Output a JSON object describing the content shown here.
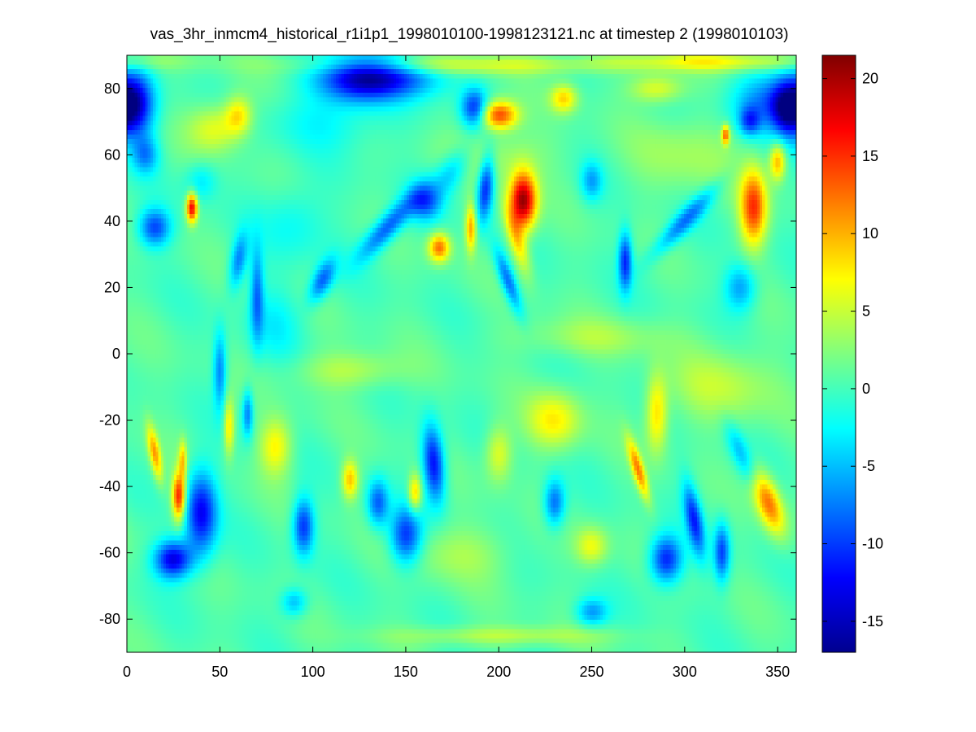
{
  "chart_data": {
    "type": "heatmap",
    "title": "vas_3hr_inmcm4_historical_r1i1p1_1998010100-1998123121.nc at timestep 2 (1998010103)",
    "xlabel": "",
    "ylabel": "",
    "xlim": [
      0,
      360
    ],
    "ylim": [
      -90,
      90
    ],
    "xticks": [
      0,
      50,
      100,
      150,
      200,
      250,
      300,
      350
    ],
    "yticks": [
      -80,
      -60,
      -40,
      -20,
      0,
      20,
      40,
      60,
      80
    ],
    "xtick_labels": [
      "0",
      "50",
      "100",
      "150",
      "200",
      "250",
      "300",
      "350"
    ],
    "ytick_labels": [
      "-80",
      "-60",
      "-40",
      "-20",
      "0",
      "20",
      "40",
      "60",
      "80"
    ],
    "colorbar": {
      "colormap": "jet",
      "clim": [
        -17,
        21.5
      ],
      "ticks": [
        -15,
        -10,
        -5,
        0,
        5,
        10,
        15,
        20
      ],
      "tick_labels": [
        "-15",
        "-10",
        "-5",
        "0",
        "5",
        "10",
        "15",
        "20"
      ]
    },
    "background_value": 0.5,
    "features": [
      {
        "x": 125,
        "y": 83,
        "value": -14,
        "sx": 16,
        "sy": 5,
        "rot": 0
      },
      {
        "x": 5,
        "y": 75,
        "value": -12,
        "sx": 7,
        "sy": 7,
        "rot": 0
      },
      {
        "x": 355,
        "y": 74,
        "value": -12,
        "sx": 6,
        "sy": 6,
        "rot": 0
      },
      {
        "x": 345,
        "y": 76,
        "value": -8,
        "sx": 14,
        "sy": 6,
        "rot": 0
      },
      {
        "x": 150,
        "y": 83,
        "value": -6,
        "sx": 18,
        "sy": 4,
        "rot": 0
      },
      {
        "x": 110,
        "y": 70,
        "value": -3,
        "sx": 22,
        "sy": 6,
        "rot": 0
      },
      {
        "x": 180,
        "y": 87,
        "value": 5,
        "sx": 60,
        "sy": 2,
        "rot": 0
      },
      {
        "x": 320,
        "y": 88,
        "value": 6,
        "sx": 40,
        "sy": 2,
        "rot": 0
      },
      {
        "x": 48,
        "y": 68,
        "value": 6,
        "sx": 10,
        "sy": 5,
        "rot": 0
      },
      {
        "x": 60,
        "y": 72,
        "value": 7,
        "sx": 5,
        "sy": 4,
        "rot": 0
      },
      {
        "x": 200,
        "y": 72,
        "value": 14,
        "sx": 7,
        "sy": 3,
        "rot": 0
      },
      {
        "x": 187,
        "y": 74,
        "value": -11,
        "sx": 5,
        "sy": 4,
        "rot": 0
      },
      {
        "x": 235,
        "y": 77,
        "value": 8,
        "sx": 5,
        "sy": 3,
        "rot": 0
      },
      {
        "x": 285,
        "y": 80,
        "value": 6,
        "sx": 10,
        "sy": 3,
        "rot": 0
      },
      {
        "x": 335,
        "y": 70,
        "value": -8,
        "sx": 4,
        "sy": 3,
        "rot": 0
      },
      {
        "x": 322,
        "y": 66,
        "value": 12,
        "sx": 1.5,
        "sy": 2,
        "rot": 0
      },
      {
        "x": 10,
        "y": 60,
        "value": -7,
        "sx": 5,
        "sy": 4,
        "rot": 0
      },
      {
        "x": 35,
        "y": 44,
        "value": 17,
        "sx": 2,
        "sy": 3,
        "rot": 0
      },
      {
        "x": 15,
        "y": 38,
        "value": -10,
        "sx": 6,
        "sy": 4,
        "rot": 0
      },
      {
        "x": 40,
        "y": 52,
        "value": -4,
        "sx": 6,
        "sy": 4,
        "rot": 0
      },
      {
        "x": 60,
        "y": 28,
        "value": -8,
        "sx": 3,
        "sy": 6,
        "rot": -20
      },
      {
        "x": 90,
        "y": 40,
        "value": -3,
        "sx": 12,
        "sy": 8,
        "rot": 0
      },
      {
        "x": 80,
        "y": 10,
        "value": -3,
        "sx": 10,
        "sy": 8,
        "rot": 0
      },
      {
        "x": 70,
        "y": 18,
        "value": -8,
        "sx": 2.5,
        "sy": 10,
        "rot": 0
      },
      {
        "x": 50,
        "y": -5,
        "value": -8,
        "sx": 2.5,
        "sy": 8,
        "rot": 0
      },
      {
        "x": 105,
        "y": 22,
        "value": -9,
        "sx": 3,
        "sy": 6,
        "rot": -50
      },
      {
        "x": 140,
        "y": 38,
        "value": -10,
        "sx": 12,
        "sy": 3,
        "rot": 30
      },
      {
        "x": 160,
        "y": 46,
        "value": -9,
        "sx": 6,
        "sy": 4,
        "rot": 0
      },
      {
        "x": 175,
        "y": 55,
        "value": -6,
        "sx": 8,
        "sy": 4,
        "rot": 30
      },
      {
        "x": 168,
        "y": 32,
        "value": 12,
        "sx": 4,
        "sy": 3,
        "rot": 0
      },
      {
        "x": 185,
        "y": 38,
        "value": 10,
        "sx": 2,
        "sy": 5,
        "rot": 0
      },
      {
        "x": 193,
        "y": 50,
        "value": -12,
        "sx": 3,
        "sy": 7,
        "rot": -10
      },
      {
        "x": 213,
        "y": 46,
        "value": 20,
        "sx": 5,
        "sy": 6,
        "rot": 0
      },
      {
        "x": 210,
        "y": 34,
        "value": 8,
        "sx": 3,
        "sy": 8,
        "rot": 30
      },
      {
        "x": 205,
        "y": 22,
        "value": -9,
        "sx": 2.5,
        "sy": 8,
        "rot": 35
      },
      {
        "x": 250,
        "y": 52,
        "value": -6,
        "sx": 4,
        "sy": 4,
        "rot": 0
      },
      {
        "x": 268,
        "y": 28,
        "value": -11,
        "sx": 2.5,
        "sy": 6,
        "rot": 0
      },
      {
        "x": 300,
        "y": 40,
        "value": -8,
        "sx": 14,
        "sy": 2.5,
        "rot": 30
      },
      {
        "x": 337,
        "y": 44,
        "value": 14,
        "sx": 5,
        "sy": 8,
        "rot": 0
      },
      {
        "x": 330,
        "y": 20,
        "value": -7,
        "sx": 6,
        "sy": 5,
        "rot": 0
      },
      {
        "x": 350,
        "y": 58,
        "value": 10,
        "sx": 3,
        "sy": 4,
        "rot": 0
      },
      {
        "x": 15,
        "y": -30,
        "value": 10,
        "sx": 2,
        "sy": 6,
        "rot": 20
      },
      {
        "x": 30,
        "y": -32,
        "value": 8,
        "sx": 1.5,
        "sy": 4,
        "rot": 0
      },
      {
        "x": 28,
        "y": -43,
        "value": 16,
        "sx": 2.5,
        "sy": 5,
        "rot": 0
      },
      {
        "x": 40,
        "y": -48,
        "value": -13,
        "sx": 6,
        "sy": 9,
        "rot": 0
      },
      {
        "x": 25,
        "y": -62,
        "value": -14,
        "sx": 7,
        "sy": 4,
        "rot": 0
      },
      {
        "x": 55,
        "y": -22,
        "value": 8,
        "sx": 2,
        "sy": 6,
        "rot": 0
      },
      {
        "x": 65,
        "y": -18,
        "value": -8,
        "sx": 2,
        "sy": 5,
        "rot": 0
      },
      {
        "x": 80,
        "y": -28,
        "value": 7,
        "sx": 6,
        "sy": 6,
        "rot": 0
      },
      {
        "x": 95,
        "y": -52,
        "value": -11,
        "sx": 4,
        "sy": 6,
        "rot": 0
      },
      {
        "x": 120,
        "y": -38,
        "value": 9,
        "sx": 3,
        "sy": 4,
        "rot": 0
      },
      {
        "x": 135,
        "y": -45,
        "value": -9,
        "sx": 4,
        "sy": 5,
        "rot": 0
      },
      {
        "x": 150,
        "y": -55,
        "value": -11,
        "sx": 6,
        "sy": 6,
        "rot": 0
      },
      {
        "x": 165,
        "y": -33,
        "value": -13,
        "sx": 4,
        "sy": 8,
        "rot": 10
      },
      {
        "x": 155,
        "y": -42,
        "value": 9,
        "sx": 2.5,
        "sy": 4,
        "rot": 0
      },
      {
        "x": 200,
        "y": -30,
        "value": 6,
        "sx": 5,
        "sy": 6,
        "rot": 0
      },
      {
        "x": 230,
        "y": -20,
        "value": 7,
        "sx": 10,
        "sy": 6,
        "rot": 0
      },
      {
        "x": 230,
        "y": -45,
        "value": -9,
        "sx": 4,
        "sy": 5,
        "rot": 0
      },
      {
        "x": 250,
        "y": -58,
        "value": 6,
        "sx": 6,
        "sy": 4,
        "rot": 0
      },
      {
        "x": 275,
        "y": -35,
        "value": 11,
        "sx": 2,
        "sy": 7,
        "rot": 30
      },
      {
        "x": 285,
        "y": -18,
        "value": 8,
        "sx": 4,
        "sy": 8,
        "rot": 0
      },
      {
        "x": 290,
        "y": -62,
        "value": -12,
        "sx": 6,
        "sy": 5,
        "rot": 0
      },
      {
        "x": 305,
        "y": -50,
        "value": -11,
        "sx": 3,
        "sy": 8,
        "rot": 20
      },
      {
        "x": 320,
        "y": -60,
        "value": -10,
        "sx": 3,
        "sy": 6,
        "rot": 0
      },
      {
        "x": 345,
        "y": -45,
        "value": 12,
        "sx": 4,
        "sy": 8,
        "rot": 40
      },
      {
        "x": 330,
        "y": -30,
        "value": -5,
        "sx": 3,
        "sy": 8,
        "rot": 40
      },
      {
        "x": 250,
        "y": -78,
        "value": -7,
        "sx": 6,
        "sy": 3,
        "rot": 0
      },
      {
        "x": 90,
        "y": -75,
        "value": -6,
        "sx": 5,
        "sy": 3,
        "rot": 0
      },
      {
        "x": 200,
        "y": -85,
        "value": 4,
        "sx": 40,
        "sy": 2,
        "rot": 0
      },
      {
        "x": 250,
        "y": 5,
        "value": 3,
        "sx": 30,
        "sy": 4,
        "rot": 0
      },
      {
        "x": 120,
        "y": -5,
        "value": 4,
        "sx": 20,
        "sy": 4,
        "rot": 0
      },
      {
        "x": 200,
        "y": 60,
        "value": 3,
        "sx": 20,
        "sy": 6,
        "rot": 0
      },
      {
        "x": 300,
        "y": 60,
        "value": 3,
        "sx": 20,
        "sy": 8,
        "rot": 0
      },
      {
        "x": 320,
        "y": -10,
        "value": 4,
        "sx": 20,
        "sy": 8,
        "rot": 0
      },
      {
        "x": 180,
        "y": -60,
        "value": 3,
        "sx": 20,
        "sy": 6,
        "rot": 0
      }
    ]
  }
}
